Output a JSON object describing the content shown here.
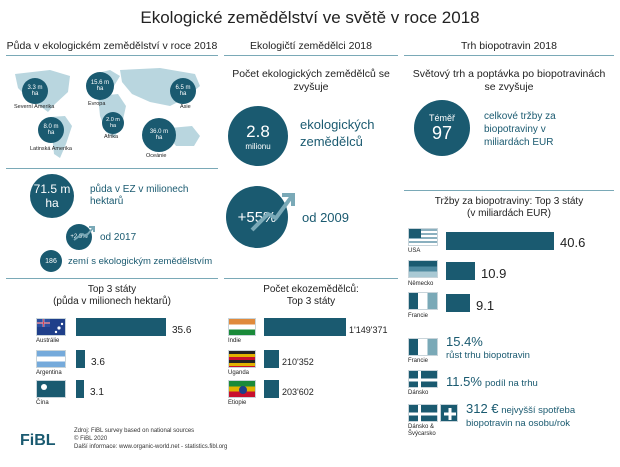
{
  "title": "Ekologické zemědělství ve světě v roce 2018",
  "col1": {
    "head": "Půda v ekologickém zemědělství v roce 2018",
    "map": [
      {
        "value": "3.3 m",
        "unit": "ha",
        "label": "Severní Amerika"
      },
      {
        "value": "15.6 m",
        "unit": "ha",
        "label": "Evropa"
      },
      {
        "value": "6.5 m",
        "unit": "ha",
        "label": "Asie"
      },
      {
        "value": "8.0 m",
        "unit": "ha",
        "label": "Latinská Amerika"
      },
      {
        "value": "2.0 m",
        "unit": "ha",
        "label": "Afrika"
      },
      {
        "value": "36.0 m",
        "unit": "ha",
        "label": "Oceánie"
      }
    ],
    "area_value": "71.5 m",
    "area_unit": "ha",
    "area_text": "půda v EZ v milionech hektarů",
    "growth_value": "+2.9%",
    "growth_text": "od 2017",
    "countries_value": "186",
    "countries_text": "zemí s ekologickým zemědělstvím",
    "top_head": "Top 3 státy",
    "top_sub": "(půda v milionech hektarů)",
    "top": [
      {
        "country": "Austrálie",
        "value": "35.6",
        "num": 35.6
      },
      {
        "country": "Argentina",
        "value": "3.6",
        "num": 3.6
      },
      {
        "country": "Čína",
        "value": "3.1",
        "num": 3.1
      }
    ]
  },
  "col2": {
    "head": "Ekologičtí zemědělci 2018",
    "sub": "Počet ekologických zemědělců se zvyšuje",
    "farmers_value": "2.8",
    "farmers_unit": "milionu",
    "farmers_text": "ekologických zemědělců",
    "growth_value": "+55%",
    "growth_text": "od 2009",
    "top_head": "Počet ekozemědělců:",
    "top_sub": "Top 3 státy",
    "top": [
      {
        "country": "Indie",
        "value": "1'149'371",
        "num": 1149371
      },
      {
        "country": "Uganda",
        "value": "210'352",
        "num": 210352
      },
      {
        "country": "Etiopie",
        "value": "203'602",
        "num": 203602
      }
    ]
  },
  "col3": {
    "head": "Trh biopotravin 2018",
    "sub": "Světový trh a poptávka po biopotravinách se zvyšuje",
    "market_label": "Téměř",
    "market_value": "97",
    "market_text": "celkové tržby za biopotraviny v miliardách EUR",
    "top_head": "Tržby za biopotraviny: Top 3 státy",
    "top_sub": "(v miliardách EUR)",
    "top": [
      {
        "country": "USA",
        "value": "40.6",
        "num": 40.6
      },
      {
        "country": "Německo",
        "value": "10.9",
        "num": 10.9
      },
      {
        "country": "Francie",
        "value": "9.1",
        "num": 9.1
      }
    ],
    "facts": [
      {
        "country": "Francie",
        "value": "15.4%",
        "text": "růst trhu biopotravin"
      },
      {
        "country": "Dánsko",
        "value": "11.5%",
        "text": "podíl na trhu"
      },
      {
        "country": "Dánsko & Švýcarsko",
        "value": "312 €",
        "text": "nejvyšší spotřeba biopotravin na osobu/rok"
      }
    ]
  },
  "footer": {
    "logo": "FiBL",
    "line1": "Zdroj: FiBL survey based on national sources",
    "line2": "© FiBL 2020",
    "line3": "Další informace: www.organic-world.net - statistics.fibl.org"
  },
  "colors": {
    "primary": "#1a5a70",
    "rule": "#7aa9b7"
  }
}
